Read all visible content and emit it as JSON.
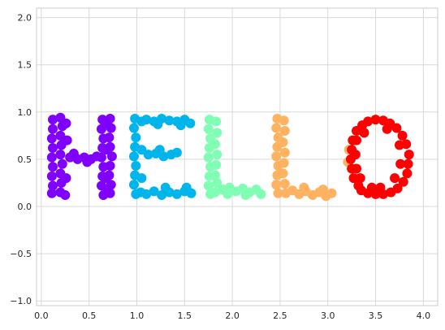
{
  "chart_data": {
    "type": "scatter",
    "title": "",
    "xlabel": "",
    "ylabel": "",
    "xlim": [
      -0.05,
      4.15
    ],
    "ylim": [
      -1.05,
      2.1
    ],
    "grid": true,
    "x_ticks": [
      0.0,
      0.5,
      1.0,
      1.5,
      2.0,
      2.5,
      3.0,
      3.5,
      4.0
    ],
    "x_tick_labels": [
      "0.0",
      "0.5",
      "1.0",
      "1.5",
      "2.0",
      "2.5",
      "3.0",
      "3.5",
      "4.0"
    ],
    "y_ticks": [
      -1.0,
      -0.5,
      0.0,
      0.5,
      1.0,
      1.5,
      2.0
    ],
    "y_tick_labels": [
      "−1.0",
      "−0.5",
      "0.0",
      "0.5",
      "1.0",
      "1.5",
      "2.0"
    ],
    "series": [
      {
        "color": "#8000ff",
        "points": [
          [
            0.12,
            0.92
          ],
          [
            0.12,
            0.82
          ],
          [
            0.11,
            0.72
          ],
          [
            0.12,
            0.62
          ],
          [
            0.11,
            0.52
          ],
          [
            0.12,
            0.42
          ],
          [
            0.11,
            0.32
          ],
          [
            0.12,
            0.22
          ],
          [
            0.11,
            0.14
          ],
          [
            0.2,
            0.94
          ],
          [
            0.22,
            0.85
          ],
          [
            0.2,
            0.75
          ],
          [
            0.21,
            0.65
          ],
          [
            0.2,
            0.55
          ],
          [
            0.22,
            0.45
          ],
          [
            0.2,
            0.35
          ],
          [
            0.21,
            0.25
          ],
          [
            0.2,
            0.15
          ],
          [
            0.26,
            0.88
          ],
          [
            0.27,
            0.7
          ],
          [
            0.25,
            0.12
          ],
          [
            0.26,
            0.3
          ],
          [
            0.3,
            0.52
          ],
          [
            0.38,
            0.5
          ],
          [
            0.45,
            0.52
          ],
          [
            0.52,
            0.5
          ],
          [
            0.58,
            0.53
          ],
          [
            0.34,
            0.56
          ],
          [
            0.48,
            0.47
          ],
          [
            0.64,
            0.92
          ],
          [
            0.63,
            0.82
          ],
          [
            0.65,
            0.72
          ],
          [
            0.64,
            0.62
          ],
          [
            0.63,
            0.52
          ],
          [
            0.65,
            0.42
          ],
          [
            0.64,
            0.32
          ],
          [
            0.63,
            0.22
          ],
          [
            0.65,
            0.12
          ],
          [
            0.72,
            0.93
          ],
          [
            0.73,
            0.83
          ],
          [
            0.71,
            0.73
          ],
          [
            0.72,
            0.63
          ],
          [
            0.74,
            0.53
          ],
          [
            0.72,
            0.43
          ],
          [
            0.71,
            0.33
          ],
          [
            0.73,
            0.23
          ],
          [
            0.72,
            0.14
          ],
          [
            0.68,
            0.88
          ],
          [
            0.69,
            0.6
          ],
          [
            0.67,
            0.3
          ],
          [
            0.7,
            0.18
          ]
        ]
      },
      {
        "color": "#00b5eb",
        "points": [
          [
            0.98,
            0.93
          ],
          [
            0.97,
            0.83
          ],
          [
            0.99,
            0.73
          ],
          [
            0.98,
            0.63
          ],
          [
            0.97,
            0.53
          ],
          [
            0.99,
            0.43
          ],
          [
            0.98,
            0.33
          ],
          [
            0.97,
            0.23
          ],
          [
            0.99,
            0.13
          ],
          [
            1.05,
            0.9
          ],
          [
            1.05,
            0.6
          ],
          [
            1.05,
            0.3
          ],
          [
            1.04,
            0.15
          ],
          [
            1.1,
            0.92
          ],
          [
            1.18,
            0.9
          ],
          [
            1.26,
            0.93
          ],
          [
            1.34,
            0.91
          ],
          [
            1.42,
            0.9
          ],
          [
            1.5,
            0.92
          ],
          [
            1.56,
            0.88
          ],
          [
            1.22,
            0.87
          ],
          [
            1.46,
            0.86
          ],
          [
            1.12,
            0.55
          ],
          [
            1.2,
            0.56
          ],
          [
            1.28,
            0.53
          ],
          [
            1.36,
            0.55
          ],
          [
            1.42,
            0.57
          ],
          [
            1.24,
            0.6
          ],
          [
            1.1,
            0.13
          ],
          [
            1.18,
            0.16
          ],
          [
            1.26,
            0.12
          ],
          [
            1.34,
            0.15
          ],
          [
            1.42,
            0.13
          ],
          [
            1.5,
            0.16
          ],
          [
            1.57,
            0.14
          ],
          [
            1.3,
            0.2
          ],
          [
            1.52,
            0.2
          ]
        ]
      },
      {
        "color": "#80ffb4",
        "points": [
          [
            1.76,
            0.92
          ],
          [
            1.75,
            0.82
          ],
          [
            1.77,
            0.72
          ],
          [
            1.76,
            0.62
          ],
          [
            1.75,
            0.52
          ],
          [
            1.77,
            0.42
          ],
          [
            1.76,
            0.32
          ],
          [
            1.75,
            0.22
          ],
          [
            1.77,
            0.13
          ],
          [
            1.83,
            0.9
          ],
          [
            1.84,
            0.78
          ],
          [
            1.82,
            0.66
          ],
          [
            1.84,
            0.55
          ],
          [
            1.83,
            0.44
          ],
          [
            1.82,
            0.33
          ],
          [
            1.84,
            0.25
          ],
          [
            1.82,
            0.15
          ],
          [
            1.9,
            0.18
          ],
          [
            1.97,
            0.2
          ],
          [
            2.04,
            0.16
          ],
          [
            2.11,
            0.19
          ],
          [
            2.18,
            0.15
          ],
          [
            2.25,
            0.18
          ],
          [
            2.3,
            0.13
          ],
          [
            1.95,
            0.13
          ],
          [
            2.14,
            0.12
          ]
        ]
      },
      {
        "color": "#ffb360",
        "points": [
          [
            2.47,
            0.93
          ],
          [
            2.46,
            0.83
          ],
          [
            2.48,
            0.73
          ],
          [
            2.47,
            0.63
          ],
          [
            2.46,
            0.53
          ],
          [
            2.48,
            0.43
          ],
          [
            2.47,
            0.33
          ],
          [
            2.46,
            0.23
          ],
          [
            2.48,
            0.14
          ],
          [
            2.54,
            0.91
          ],
          [
            2.55,
            0.8
          ],
          [
            2.53,
            0.68
          ],
          [
            2.55,
            0.57
          ],
          [
            2.54,
            0.46
          ],
          [
            2.53,
            0.35
          ],
          [
            2.55,
            0.24
          ],
          [
            2.56,
            0.14
          ],
          [
            2.63,
            0.17
          ],
          [
            2.7,
            0.13
          ],
          [
            2.77,
            0.16
          ],
          [
            2.84,
            0.12
          ],
          [
            2.91,
            0.15
          ],
          [
            2.98,
            0.11
          ],
          [
            3.04,
            0.14
          ],
          [
            2.75,
            0.2
          ],
          [
            2.95,
            0.18
          ],
          [
            3.22,
            0.6
          ],
          [
            3.21,
            0.47
          ]
        ]
      },
      {
        "color": "#ff0000",
        "points": [
          [
            3.26,
            0.7
          ],
          [
            3.25,
            0.6
          ],
          [
            3.24,
            0.5
          ],
          [
            3.25,
            0.4
          ],
          [
            3.27,
            0.3
          ],
          [
            3.3,
            0.8
          ],
          [
            3.32,
            0.22
          ],
          [
            3.36,
            0.86
          ],
          [
            3.35,
            0.17
          ],
          [
            3.42,
            0.9
          ],
          [
            3.42,
            0.14
          ],
          [
            3.5,
            0.92
          ],
          [
            3.5,
            0.13
          ],
          [
            3.58,
            0.91
          ],
          [
            3.58,
            0.13
          ],
          [
            3.65,
            0.88
          ],
          [
            3.66,
            0.15
          ],
          [
            3.72,
            0.83
          ],
          [
            3.73,
            0.19
          ],
          [
            3.78,
            0.75
          ],
          [
            3.79,
            0.26
          ],
          [
            3.82,
            0.66
          ],
          [
            3.83,
            0.35
          ],
          [
            3.85,
            0.55
          ],
          [
            3.84,
            0.45
          ],
          [
            3.3,
            0.7
          ],
          [
            3.29,
            0.55
          ],
          [
            3.3,
            0.4
          ],
          [
            3.34,
            0.3
          ],
          [
            3.38,
            0.78
          ],
          [
            3.75,
            0.65
          ],
          [
            3.76,
            0.45
          ],
          [
            3.7,
            0.3
          ],
          [
            3.62,
            0.82
          ],
          [
            3.46,
            0.2
          ],
          [
            3.55,
            0.2
          ]
        ]
      }
    ]
  }
}
